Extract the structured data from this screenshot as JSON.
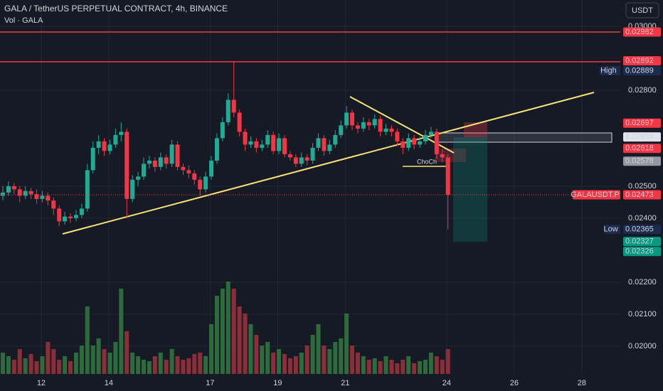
{
  "chart_data": {
    "type": "candlestick",
    "title": "GALA / TetherUS PERPETUAL CONTRACT, 4h, BINANCE",
    "subtitle": "Vol · GALA",
    "currency": "USDT",
    "annotation": "ChoCh",
    "up_color": "#22ab94",
    "down_color": "#f23645",
    "volume_up_color": "#2e6b3c",
    "volume_down_color": "#8a2e3a",
    "xlim": [
      10.78,
      29.14
    ],
    "xticks": [
      12,
      14,
      17,
      19,
      21,
      24,
      26,
      28
    ],
    "ylim": [
      0.01913,
      0.03082
    ],
    "yticks": [
      {
        "value": 0.03,
        "label": "0.03000"
      },
      {
        "value": 0.028,
        "label": "0.02800"
      },
      {
        "value": 0.025,
        "label": "0.02500"
      },
      {
        "value": 0.024,
        "label": "0.02400"
      },
      {
        "value": 0.022,
        "label": "0.02200"
      },
      {
        "value": 0.021,
        "label": "0.02100"
      },
      {
        "value": 0.02,
        "label": "0.02000"
      }
    ],
    "grid": true,
    "candles": [
      [
        0.0247,
        0.025,
        0.02455,
        0.0248
      ],
      [
        0.0248,
        0.02515,
        0.0247,
        0.025
      ],
      [
        0.025,
        0.0251,
        0.02475,
        0.0249
      ],
      [
        0.0249,
        0.025,
        0.0245,
        0.0247
      ],
      [
        0.0247,
        0.025,
        0.0246,
        0.02485
      ],
      [
        0.02485,
        0.02495,
        0.0246,
        0.02475
      ],
      [
        0.02475,
        0.0249,
        0.02445,
        0.0246
      ],
      [
        0.0246,
        0.02485,
        0.0245,
        0.0247
      ],
      [
        0.0247,
        0.0248,
        0.0244,
        0.02455
      ],
      [
        0.02455,
        0.02465,
        0.0241,
        0.0243
      ],
      [
        0.0243,
        0.0244,
        0.02375,
        0.0239
      ],
      [
        0.0239,
        0.0242,
        0.0238,
        0.02405
      ],
      [
        0.02405,
        0.02415,
        0.02385,
        0.024
      ],
      [
        0.024,
        0.02425,
        0.0239,
        0.0241
      ],
      [
        0.0241,
        0.02445,
        0.024,
        0.0243
      ],
      [
        0.0243,
        0.0257,
        0.0242,
        0.0255
      ],
      [
        0.0255,
        0.0264,
        0.0254,
        0.0262
      ],
      [
        0.0262,
        0.0266,
        0.026,
        0.0264
      ],
      [
        0.0264,
        0.0265,
        0.02595,
        0.0261
      ],
      [
        0.0261,
        0.02645,
        0.026,
        0.0263
      ],
      [
        0.0263,
        0.0268,
        0.0262,
        0.0266
      ],
      [
        0.0266,
        0.027,
        0.0264,
        0.0267
      ],
      [
        0.0267,
        0.0268,
        0.024,
        0.0246
      ],
      [
        0.0246,
        0.02535,
        0.0245,
        0.0252
      ],
      [
        0.0252,
        0.02545,
        0.025,
        0.0253
      ],
      [
        0.0253,
        0.0259,
        0.0252,
        0.0257
      ],
      [
        0.0257,
        0.02595,
        0.02555,
        0.0258
      ],
      [
        0.0258,
        0.0259,
        0.02545,
        0.0256
      ],
      [
        0.0256,
        0.02605,
        0.0255,
        0.0259
      ],
      [
        0.0259,
        0.026,
        0.02555,
        0.0257
      ],
      [
        0.0257,
        0.02645,
        0.0256,
        0.0263
      ],
      [
        0.0263,
        0.0264,
        0.0255,
        0.0256
      ],
      [
        0.0256,
        0.0257,
        0.02535,
        0.0255
      ],
      [
        0.0255,
        0.02565,
        0.02525,
        0.0254
      ],
      [
        0.0254,
        0.0255,
        0.02505,
        0.0252
      ],
      [
        0.0252,
        0.0253,
        0.0247,
        0.0249
      ],
      [
        0.0249,
        0.02545,
        0.0248,
        0.0253
      ],
      [
        0.0253,
        0.02595,
        0.0252,
        0.0258
      ],
      [
        0.0258,
        0.02665,
        0.0257,
        0.0265
      ],
      [
        0.0265,
        0.02715,
        0.0264,
        0.027
      ],
      [
        0.027,
        0.0279,
        0.0269,
        0.0277
      ],
      [
        0.0277,
        0.02889,
        0.02715,
        0.0273
      ],
      [
        0.0273,
        0.0274,
        0.02655,
        0.0267
      ],
      [
        0.0267,
        0.0268,
        0.0261,
        0.0263
      ],
      [
        0.0263,
        0.02655,
        0.0262,
        0.0264
      ],
      [
        0.0264,
        0.0265,
        0.02605,
        0.0262
      ],
      [
        0.0262,
        0.02645,
        0.0261,
        0.0263
      ],
      [
        0.0263,
        0.02675,
        0.0262,
        0.0266
      ],
      [
        0.0266,
        0.0267,
        0.026,
        0.0261
      ],
      [
        0.0261,
        0.02665,
        0.026,
        0.0265
      ],
      [
        0.0265,
        0.0266,
        0.0259,
        0.026
      ],
      [
        0.026,
        0.0261,
        0.0258,
        0.0259
      ],
      [
        0.0259,
        0.026,
        0.0256,
        0.0257
      ],
      [
        0.0257,
        0.02605,
        0.0256,
        0.0259
      ],
      [
        0.0259,
        0.026,
        0.02565,
        0.0258
      ],
      [
        0.0258,
        0.02635,
        0.0257,
        0.0262
      ],
      [
        0.0262,
        0.02665,
        0.0261,
        0.0265
      ],
      [
        0.0265,
        0.0266,
        0.02595,
        0.0261
      ],
      [
        0.0261,
        0.02645,
        0.026,
        0.0263
      ],
      [
        0.0263,
        0.02675,
        0.0262,
        0.0266
      ],
      [
        0.0266,
        0.02705,
        0.0265,
        0.0269
      ],
      [
        0.0269,
        0.0275,
        0.0268,
        0.0273
      ],
      [
        0.0273,
        0.0274,
        0.02675,
        0.0269
      ],
      [
        0.0269,
        0.027,
        0.02665,
        0.0268
      ],
      [
        0.0268,
        0.02715,
        0.0267,
        0.027
      ],
      [
        0.027,
        0.0271,
        0.02675,
        0.0269
      ],
      [
        0.0269,
        0.02725,
        0.0268,
        0.0271
      ],
      [
        0.0271,
        0.0272,
        0.02655,
        0.0267
      ],
      [
        0.0267,
        0.02695,
        0.0266,
        0.0268
      ],
      [
        0.0268,
        0.0269,
        0.02655,
        0.0267
      ],
      [
        0.0267,
        0.0268,
        0.02625,
        0.0264
      ],
      [
        0.0264,
        0.0265,
        0.026,
        0.0262
      ],
      [
        0.0262,
        0.02665,
        0.0261,
        0.0265
      ],
      [
        0.0265,
        0.0266,
        0.02615,
        0.0263
      ],
      [
        0.0263,
        0.02655,
        0.0262,
        0.0264
      ],
      [
        0.0264,
        0.02675,
        0.0263,
        0.0266
      ],
      [
        0.0266,
        0.02685,
        0.0265,
        0.0267
      ],
      [
        0.0267,
        0.0268,
        0.02585,
        0.026
      ],
      [
        0.026,
        0.02615,
        0.02575,
        0.0259
      ],
      [
        0.0259,
        0.026,
        0.02365,
        0.02473
      ]
    ],
    "volume": [
      30,
      25,
      20,
      35,
      22,
      28,
      18,
      25,
      45,
      35,
      20,
      25,
      18,
      30,
      40,
      95,
      40,
      50,
      35,
      30,
      45,
      120,
      60,
      30,
      25,
      20,
      18,
      25,
      30,
      20,
      35,
      25,
      20,
      22,
      28,
      30,
      25,
      70,
      110,
      120,
      130,
      120,
      95,
      85,
      70,
      55,
      40,
      45,
      30,
      35,
      28,
      22,
      25,
      30,
      40,
      55,
      70,
      40,
      35,
      45,
      50,
      85,
      40,
      30,
      25,
      20,
      22,
      18,
      25,
      20,
      15,
      20,
      25,
      15,
      18,
      20,
      30,
      25,
      20,
      35
    ],
    "price_labels": [
      {
        "value": 0.02982,
        "color": "#f23645",
        "line": true
      },
      {
        "value": 0.02892,
        "color": "#f23645"
      },
      {
        "value": 0.02889,
        "color": "#1c2a4d",
        "tag": "High",
        "line": true
      },
      {
        "value": 0.02697,
        "color": "#f23645"
      },
      {
        "value": 0.02654,
        "color": "#e0e3eb"
      },
      {
        "value": 0.02618,
        "color": "#f23645"
      },
      {
        "value": 0.02578,
        "color": "#9598a1"
      },
      {
        "value": 0.02473,
        "color": "#f23645",
        "tag": "GALAUSDT.P"
      },
      {
        "value": 0.02365,
        "color": "#1c2a4d",
        "tag": "Low"
      },
      {
        "value": 0.02327,
        "color": "#089981"
      },
      {
        "value": 0.02326,
        "color": "#089981"
      }
    ]
  }
}
